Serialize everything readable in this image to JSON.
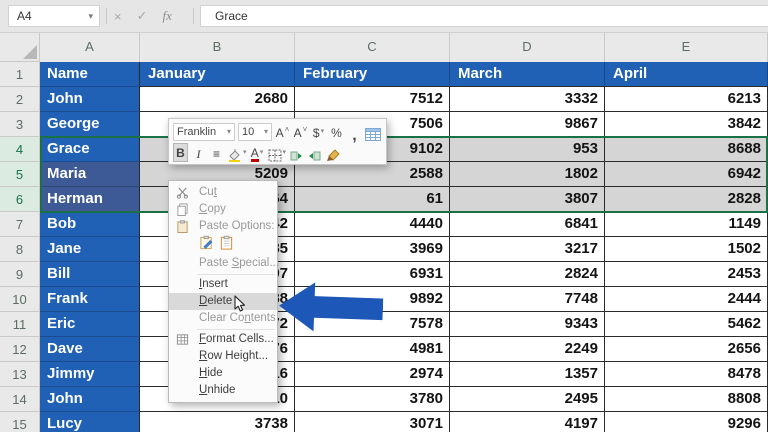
{
  "colors": {
    "header-blue": "#2061b5",
    "header-blue-dim": "#3d5a96",
    "selected-cell-gray": "#d6d5d5",
    "selection-green": "#1a7145",
    "arrow-blue": "#1d57b8",
    "grid-border-dark": "#2b2b2b"
  },
  "formula_bar": {
    "name_box": "A4",
    "value": "Grace"
  },
  "icons": {
    "dropdown": "▾",
    "cancel": "×",
    "enter": "✓",
    "fx": "fx"
  },
  "sheet": {
    "column_headers": [
      "A",
      "B",
      "C",
      "D",
      "E"
    ],
    "row_numbers": [
      1,
      2,
      3,
      4,
      5,
      6,
      7,
      8,
      9,
      10,
      11,
      12,
      13,
      14,
      15
    ],
    "header_row": {
      "name": "Name",
      "jan": "January",
      "feb": "February",
      "mar": "March",
      "apr": "April"
    },
    "rows": [
      {
        "n": 2,
        "name": "John",
        "jan": "2680",
        "feb": "7512",
        "mar": "3332",
        "apr": "6213"
      },
      {
        "n": 3,
        "name": "George",
        "jan": "",
        "feb": "7506",
        "mar": "9867",
        "apr": "3842"
      },
      {
        "n": 4,
        "name": "Grace",
        "jan": "",
        "feb": "9102",
        "mar": "953",
        "apr": "8688"
      },
      {
        "n": 5,
        "name": "Maria",
        "jan": "5209",
        "feb": "2588",
        "mar": "1802",
        "apr": "6942"
      },
      {
        "n": 6,
        "name": "Herman",
        "jan": "64",
        "feb": "61",
        "mar": "3807",
        "apr": "2828"
      },
      {
        "n": 7,
        "name": "Bob",
        "jan": "42",
        "feb": "4440",
        "mar": "6841",
        "apr": "1149"
      },
      {
        "n": 8,
        "name": "Jane",
        "jan": "85",
        "feb": "3969",
        "mar": "3217",
        "apr": "1502"
      },
      {
        "n": 9,
        "name": "Bill",
        "jan": "97",
        "feb": "6931",
        "mar": "2824",
        "apr": "2453"
      },
      {
        "n": 10,
        "name": "Frank",
        "jan": "88",
        "feb": "9892",
        "mar": "7748",
        "apr": "2444"
      },
      {
        "n": 11,
        "name": "Eric",
        "jan": "72",
        "feb": "7578",
        "mar": "9343",
        "apr": "5462"
      },
      {
        "n": 12,
        "name": "Dave",
        "jan": "76",
        "feb": "4981",
        "mar": "2249",
        "apr": "2656"
      },
      {
        "n": 13,
        "name": "Jimmy",
        "jan": "16",
        "feb": "2974",
        "mar": "1357",
        "apr": "8478"
      },
      {
        "n": 14,
        "name": "John",
        "jan": "10",
        "feb": "3780",
        "mar": "2495",
        "apr": "8808"
      },
      {
        "n": 15,
        "name": "Lucy",
        "jan": "3738",
        "feb": "3071",
        "mar": "4197",
        "apr": "9296"
      }
    ],
    "selection": {
      "rows": [
        4,
        5,
        6
      ],
      "active_cell": "A4"
    }
  },
  "mini_toolbar": {
    "font_name": "Franklin",
    "font_size": "10",
    "increase_font": "A",
    "decrease_font": "A",
    "accounting": "$",
    "percent": "%",
    "comma": ",",
    "bold": "B",
    "italic": "I",
    "align_center": "≡",
    "font_color_letter": "A"
  },
  "context_menu": {
    "items": [
      {
        "id": "cut",
        "pre": "Cu",
        "u": "t",
        "post": "",
        "icon": "scissors",
        "dim": true
      },
      {
        "id": "copy",
        "pre": "",
        "u": "C",
        "post": "opy",
        "icon": "copy",
        "dim": true
      },
      {
        "id": "paste-options",
        "pre": "Paste Options:",
        "u": "",
        "post": "",
        "icon": "clipboard",
        "dim": true,
        "label": true
      },
      {
        "id": "paste-buttons",
        "type": "paste-icons"
      },
      {
        "id": "paste-special",
        "pre": "Paste ",
        "u": "S",
        "post": "pecial...",
        "dim": true
      },
      {
        "type": "sep"
      },
      {
        "id": "insert",
        "pre": "",
        "u": "I",
        "post": "nsert"
      },
      {
        "id": "delete",
        "pre": "",
        "u": "D",
        "post": "elete",
        "highlight": true,
        "cursor": true
      },
      {
        "id": "clear-contents",
        "pre": "Clear Co",
        "u": "n",
        "post": "tents",
        "dim": true
      },
      {
        "type": "sep"
      },
      {
        "id": "format-cells",
        "pre": "",
        "u": "F",
        "post": "ormat Cells...",
        "icon": "format-cells"
      },
      {
        "id": "row-height",
        "pre": "",
        "u": "R",
        "post": "ow Height..."
      },
      {
        "id": "hide",
        "pre": "",
        "u": "H",
        "post": "ide"
      },
      {
        "id": "unhide",
        "pre": "",
        "u": "U",
        "post": "nhide"
      }
    ]
  }
}
